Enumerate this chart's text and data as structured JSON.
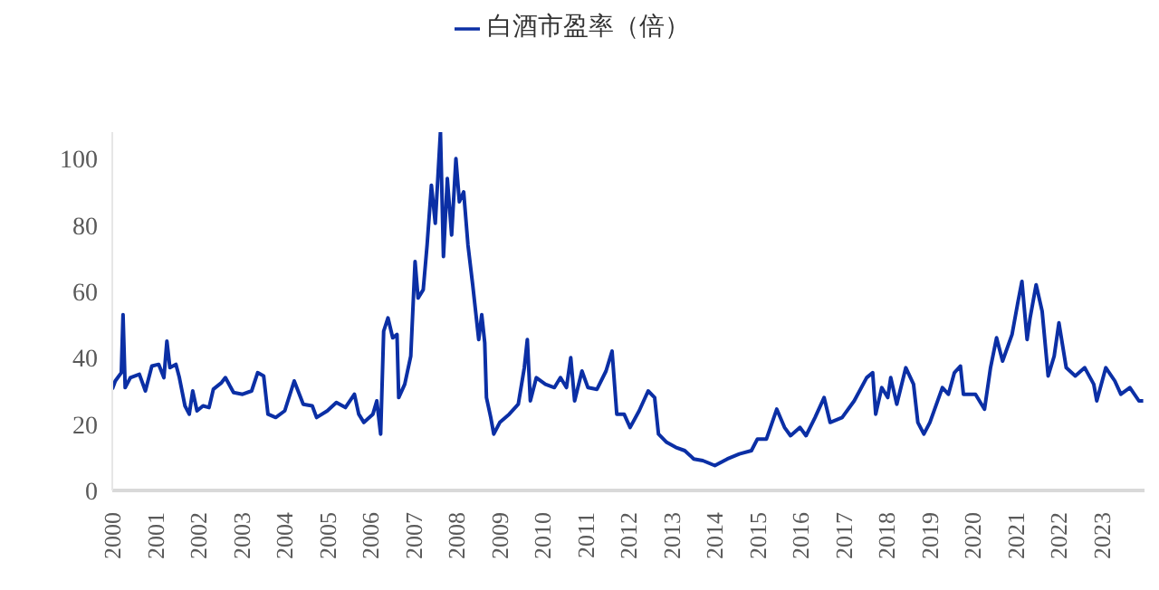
{
  "chart_data": {
    "type": "line",
    "x": [
      2000.0,
      2000.07,
      2000.21,
      2000.25,
      2000.3,
      2000.42,
      2000.63,
      2000.77,
      2000.92,
      2001.08,
      2001.2,
      2001.27,
      2001.34,
      2001.48,
      2001.56,
      2001.69,
      2001.79,
      2001.87,
      2001.97,
      2002.11,
      2002.25,
      2002.35,
      2002.54,
      2002.63,
      2002.82,
      2003.03,
      2003.24,
      2003.38,
      2003.52,
      2003.62,
      2003.8,
      2004.01,
      2004.23,
      2004.44,
      2004.65,
      2004.75,
      2005.0,
      2005.21,
      2005.42,
      2005.63,
      2005.73,
      2005.85,
      2006.06,
      2006.15,
      2006.24,
      2006.31,
      2006.41,
      2006.52,
      2006.62,
      2006.66,
      2006.8,
      2006.94,
      2007.04,
      2007.11,
      2007.23,
      2007.32,
      2007.42,
      2007.51,
      2007.63,
      2007.7,
      2007.79,
      2007.89,
      2007.99,
      2008.07,
      2008.17,
      2008.27,
      2008.38,
      2008.52,
      2008.59,
      2008.66,
      2008.7,
      2008.8,
      2008.87,
      2009.01,
      2009.23,
      2009.44,
      2009.58,
      2009.65,
      2009.72,
      2009.86,
      2010.07,
      2010.28,
      2010.42,
      2010.56,
      2010.66,
      2010.75,
      2010.92,
      2011.06,
      2011.27,
      2011.48,
      2011.62,
      2011.73,
      2011.9,
      2012.04,
      2012.25,
      2012.46,
      2012.61,
      2012.7,
      2012.89,
      2013.1,
      2013.31,
      2013.52,
      2013.73,
      2014.01,
      2014.3,
      2014.58,
      2014.86,
      2015.0,
      2015.21,
      2015.45,
      2015.63,
      2015.77,
      2015.99,
      2016.13,
      2016.34,
      2016.55,
      2016.69,
      2016.97,
      2017.25,
      2017.54,
      2017.68,
      2017.75,
      2017.89,
      2018.03,
      2018.1,
      2018.24,
      2018.45,
      2018.63,
      2018.73,
      2018.87,
      2019.01,
      2019.3,
      2019.44,
      2019.58,
      2019.72,
      2019.79,
      2020.07,
      2020.28,
      2020.42,
      2020.56,
      2020.7,
      2020.92,
      2021.06,
      2021.15,
      2021.27,
      2021.34,
      2021.48,
      2021.62,
      2021.76,
      2021.9,
      2022.01,
      2022.18,
      2022.39,
      2022.61,
      2022.82,
      2022.89,
      2023.1,
      2023.31,
      2023.45,
      2023.66,
      2023.87,
      2023.97
    ],
    "series": [
      {
        "name": "白酒市盈率（倍）",
        "color": "#0b2fa5",
        "values": [
          30.5,
          33,
          35.5,
          53,
          31,
          34,
          35,
          30,
          37.5,
          38,
          34,
          45,
          37,
          38,
          34,
          25.5,
          23,
          30,
          24,
          25.5,
          25,
          30.5,
          32.5,
          34,
          29.5,
          29,
          30,
          35.5,
          34.5,
          23,
          22,
          24,
          33,
          26,
          25.5,
          22,
          24,
          26.5,
          25,
          29,
          23,
          20.5,
          23,
          27,
          17,
          48,
          52,
          46,
          47,
          28,
          32,
          40.5,
          69,
          58,
          60.5,
          74,
          92,
          80.5,
          108,
          70.5,
          94,
          77,
          100,
          87,
          90,
          74,
          62,
          45.5,
          53,
          44.5,
          28,
          22,
          17,
          20.5,
          23,
          26,
          37,
          45.5,
          27,
          34,
          32,
          31,
          34,
          31,
          40,
          27,
          36,
          31,
          30.5,
          36,
          42,
          23,
          23,
          19,
          24,
          30,
          28,
          17,
          14.5,
          13,
          12,
          9.5,
          9,
          7.5,
          9.5,
          11,
          12,
          15.5,
          15.5,
          24.5,
          19,
          16.5,
          19,
          16.5,
          22,
          28,
          20.5,
          22,
          27,
          34,
          35.5,
          23,
          31,
          28,
          34,
          26,
          37,
          32,
          20.5,
          17,
          20.5,
          31,
          29,
          35.5,
          37.5,
          29,
          29,
          24.5,
          37,
          46,
          39,
          47,
          57,
          63,
          45.5,
          52,
          62,
          54,
          34.5,
          40.5,
          50.5,
          37,
          34.5,
          37,
          32,
          27,
          37,
          33,
          29,
          31,
          27,
          27
        ]
      }
    ],
    "xlim": [
      2000,
      2024
    ],
    "xticks": [
      2000,
      2001,
      2002,
      2003,
      2004,
      2005,
      2006,
      2007,
      2008,
      2009,
      2010,
      2011,
      2012,
      2013,
      2014,
      2015,
      2016,
      2017,
      2018,
      2019,
      2020,
      2021,
      2022,
      2023
    ],
    "ylim": [
      0,
      108
    ],
    "yticks": [
      0,
      20,
      40,
      60,
      80,
      100
    ],
    "grid": false,
    "legend": "top",
    "marker": "none",
    "line_style": "solid"
  }
}
